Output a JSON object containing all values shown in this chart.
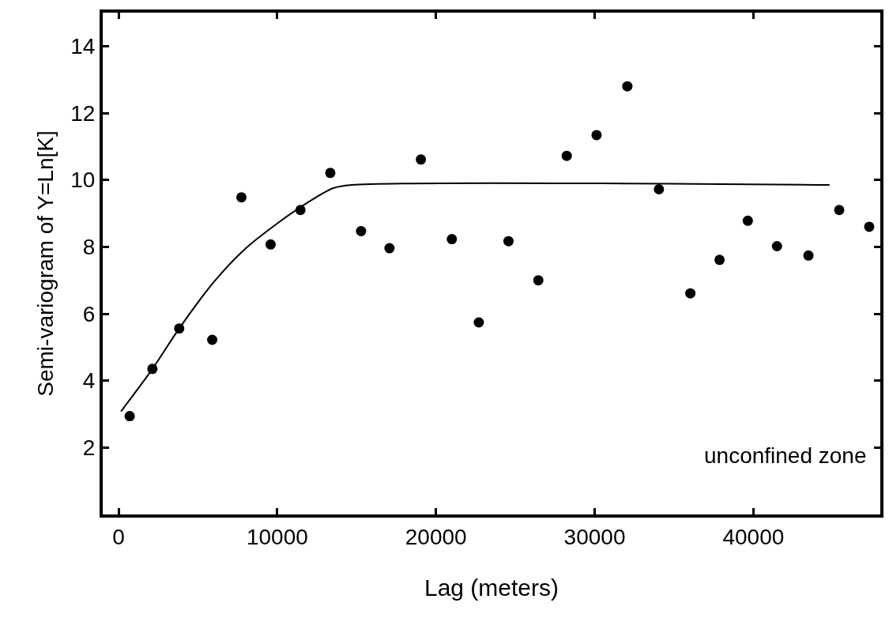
{
  "chart_data": {
    "type": "scatter",
    "xlabel": "Lag (meters)",
    "ylabel": "Semi-variogram of Y=Ln[K]",
    "annotations": [
      "unconfined zone"
    ],
    "xlim": [
      -1000,
      48000
    ],
    "xticks": [
      0,
      10000,
      20000,
      30000,
      40000
    ],
    "ylim": [
      0,
      15
    ],
    "yticks": [
      2,
      4,
      6,
      8,
      10,
      12,
      14
    ],
    "marker": "circle",
    "series": [
      {
        "color": "#000000",
        "x": [
          700,
          2130,
          3820,
          5900,
          7740,
          9580,
          11460,
          13340,
          15280,
          17070,
          19050,
          21000,
          22700,
          24570,
          26450,
          28240,
          30120,
          32060,
          34050,
          36030,
          37870,
          39650,
          41490,
          43470,
          45410,
          47300
        ],
        "values": [
          2.94,
          4.35,
          5.56,
          5.22,
          9.48,
          8.07,
          9.1,
          10.21,
          8.47,
          7.96,
          10.61,
          8.23,
          5.74,
          8.17,
          7.0,
          10.72,
          11.34,
          12.8,
          9.72,
          6.61,
          7.61,
          8.78,
          8.02,
          7.74,
          9.1,
          8.6
        ]
      },
      {
        "type": "line",
        "color": "#000000",
        "marker": "none",
        "x": [
          150,
          2130,
          3820,
          6000,
          8000,
          10000,
          12000,
          13500,
          14700,
          44800
        ],
        "values": [
          3.08,
          4.35,
          5.56,
          6.95,
          7.95,
          8.7,
          9.35,
          9.75,
          9.85,
          9.85
        ]
      }
    ]
  }
}
